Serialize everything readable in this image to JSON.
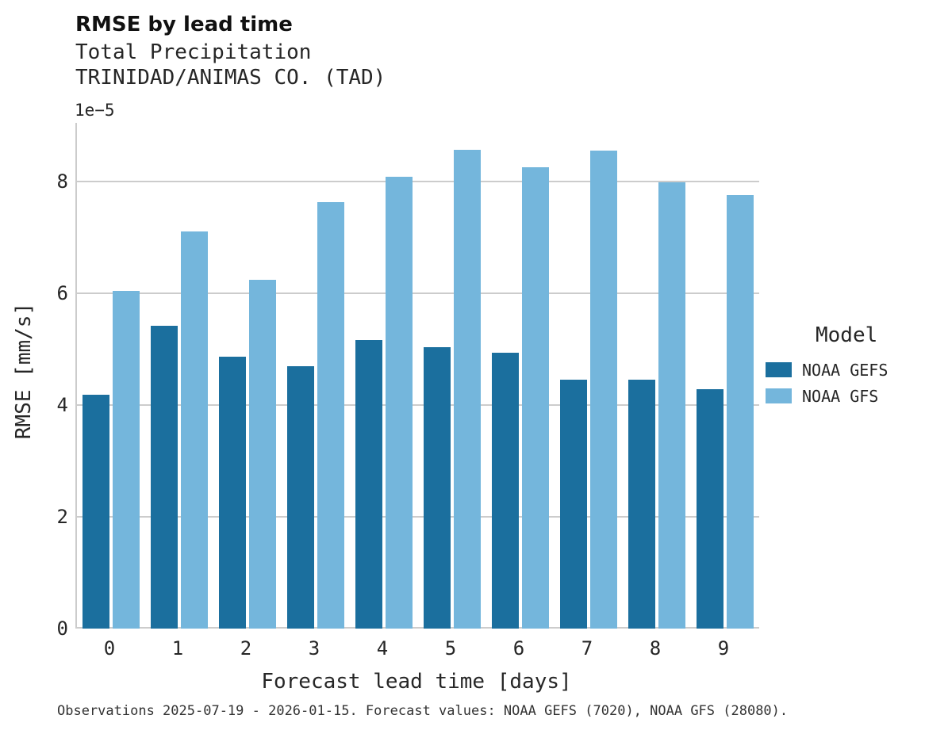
{
  "chart_data": {
    "type": "bar",
    "title": "RMSE by lead time",
    "subtitle1": "Total Precipitation",
    "subtitle2": "TRINIDAD/ANIMAS CO. (TAD)",
    "y_offset": "1e−5",
    "xlabel": "Forecast lead time [days]",
    "ylabel": "RMSE [mm/s]",
    "categories": [
      "0",
      "1",
      "2",
      "3",
      "4",
      "5",
      "6",
      "7",
      "8",
      "9"
    ],
    "series": [
      {
        "name": "NOAA GEFS",
        "color": "#1b6f9e",
        "values": [
          4.18,
          5.42,
          4.87,
          4.69,
          5.16,
          5.03,
          4.94,
          4.46,
          4.45,
          4.28
        ]
      },
      {
        "name": "NOAA GFS",
        "color": "#74b6dc",
        "values": [
          6.04,
          7.1,
          6.24,
          7.63,
          8.08,
          8.57,
          8.25,
          8.56,
          7.98,
          7.76
        ]
      }
    ],
    "ylim": [
      0,
      9.05
    ],
    "yticks": [
      0,
      2,
      4,
      6,
      8
    ],
    "grid": true,
    "legend_title": "Model",
    "legend_position": "right",
    "grid_color": "#cccccc",
    "caption": "Observations 2025-07-19 - 2026-01-15. Forecast values: NOAA GEFS (7020), NOAA GFS (28080)."
  }
}
